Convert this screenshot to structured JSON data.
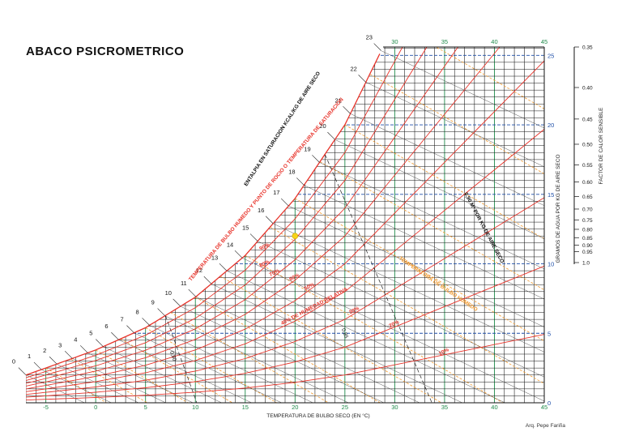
{
  "title": "ABACO PSICROMETRICO",
  "author": "Arq. Pepe Fariña",
  "chart_data": {
    "type": "line",
    "title": "ABACO PSICROMETRICO",
    "xlabel": "TEMPERATURA DE BULBO SECO (EN °C)",
    "ylabel": "GRAMOS DE AGUA POR KG DE AIRE SECO",
    "xlim": [
      -7,
      45
    ],
    "ylim": [
      0,
      25.6
    ],
    "x_ticks": [
      "-5",
      "0",
      "5",
      "10",
      "15",
      "20",
      "25",
      "30",
      "35",
      "40",
      "45"
    ],
    "top_ticks": [
      "30",
      "35",
      "40",
      "45"
    ],
    "y_ticks": [
      "0",
      "5",
      "10",
      "15",
      "20",
      "25"
    ],
    "grid": true,
    "saturation_curve": {
      "name": "TEMPERATURA DE BULBO HUMEDO Y PUNTO DE ROCIO O TEMPERATURA DE SATURACION",
      "x": [
        -7,
        -5,
        0,
        5,
        10,
        15,
        20,
        25,
        30
      ],
      "y": [
        2.0,
        2.5,
        3.8,
        5.4,
        7.6,
        10.6,
        14.7,
        20.0,
        27.3
      ]
    },
    "relative_humidity_curves": [
      {
        "label": "90%",
        "rh": 0.9
      },
      {
        "label": "80%",
        "rh": 0.8
      },
      {
        "label": "70%",
        "rh": 0.7
      },
      {
        "label": "60%",
        "rh": 0.6
      },
      {
        "label": "50%",
        "rh": 0.5
      },
      {
        "label": "40% DE HUMEDAD RELATIVA",
        "rh": 0.4
      },
      {
        "label": "30%",
        "rh": 0.3
      },
      {
        "label": "20%",
        "rh": 0.2
      },
      {
        "label": "10%",
        "rh": 0.1
      }
    ],
    "enthalpy_scale": {
      "label": "ENTALPIA EN SATURACION KCAL/KG DE AIRE SECO",
      "values": [
        "0",
        "1",
        "2",
        "3",
        "4",
        "5",
        "6",
        "7",
        "8",
        "9",
        "10",
        "11",
        "12",
        "13",
        "14",
        "15",
        "16",
        "17",
        "18",
        "19",
        "20",
        "21",
        "22",
        "23"
      ]
    },
    "wet_bulb_label": "TEMPERATURA DE BULBO HUMEDO",
    "specific_volume_label": "0,90 M³ POR KG DE AIRE SECO",
    "specific_volume_marks": [
      "0,80",
      "0,85"
    ],
    "sensible_heat_factor": {
      "label": "FACTOR DE CALOR SENSIBLE",
      "values": [
        "0.35",
        "0.40",
        "0.45",
        "0.50",
        "0.55",
        "0.60",
        "0.65",
        "0.70",
        "0.75",
        "0.80",
        "0.85",
        "0.90",
        "0.95",
        "1.0"
      ]
    },
    "colors": {
      "grid": "#111111",
      "relative_humidity": "#e8332a",
      "wet_bulb": "#f29a2e",
      "dry_bulb_axis": "#1f8a4a",
      "humidity_axis": "#1f4fa8",
      "enthalpy": "#222222",
      "marker": "#f7d417"
    }
  }
}
